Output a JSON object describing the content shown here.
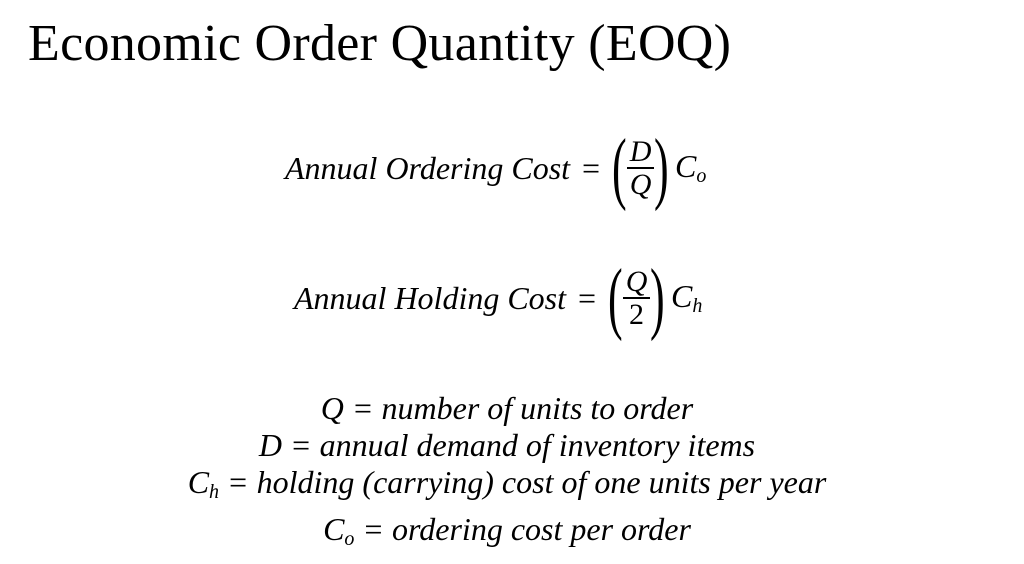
{
  "title": "Economic Order Quantity (EOQ)",
  "formulas": [
    {
      "lhs": "Annual Ordering Cost",
      "equals": "=",
      "numerator": "D",
      "denominator": "Q",
      "factor": "C",
      "factor_sub": "o"
    },
    {
      "lhs": "Annual Holding Cost",
      "equals": "=",
      "numerator": "Q",
      "denominator": "2",
      "factor": "C",
      "factor_sub": "h"
    }
  ],
  "definitions": [
    {
      "symbol": "Q",
      "sub": "",
      "text": "= number of units to order"
    },
    {
      "symbol": "D",
      "sub": "",
      "text": "= annual demand of inventory items"
    },
    {
      "symbol": "C",
      "sub": "h",
      "text": "= holding (carrying) cost of one units per year"
    },
    {
      "symbol": "C",
      "sub": "o",
      "text": "= ordering cost per order"
    }
  ]
}
